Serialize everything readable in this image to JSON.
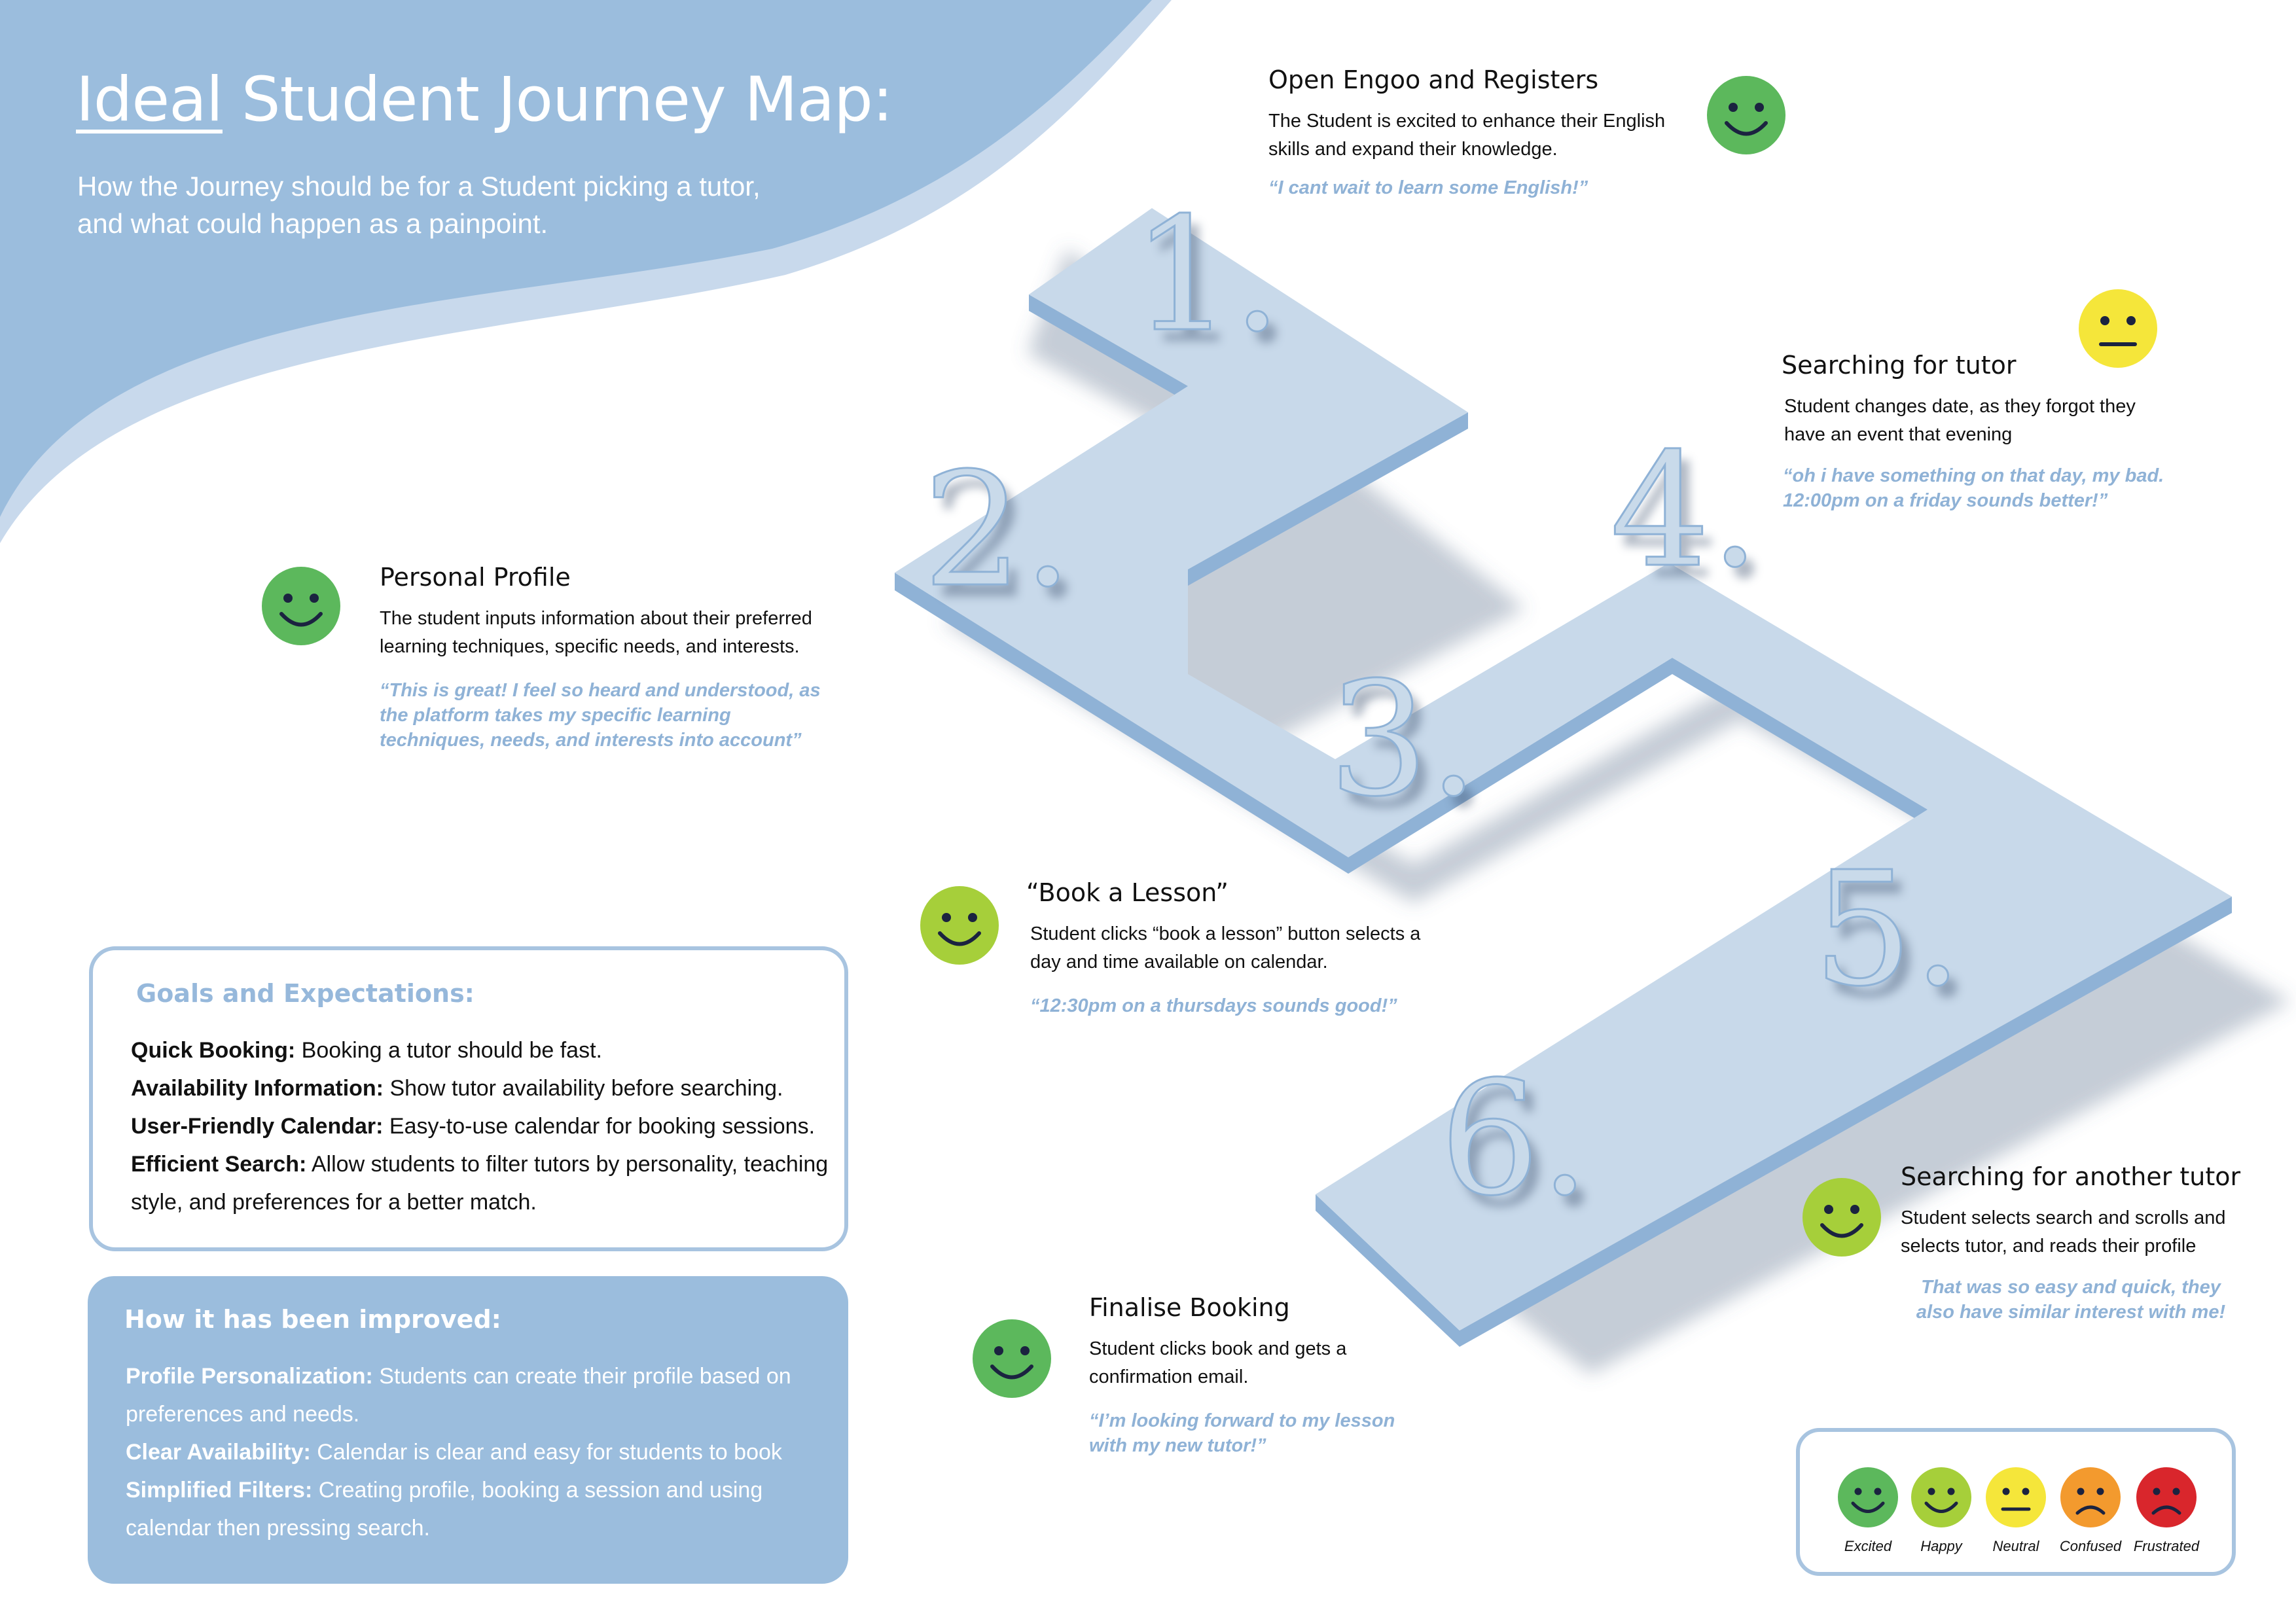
{
  "header": {
    "title_ideal": "Ideal",
    "title_rest": " Student Journey Map:",
    "subtitle_line1": "How the Journey should be for a Student picking a tutor,",
    "subtitle_line2": "and what could happen as a painpoint."
  },
  "steps": {
    "n1": "1.",
    "n2": "2.",
    "n3": "3.",
    "n4": "4.",
    "n5": "5.",
    "n6": "6."
  },
  "stages": [
    {
      "title": "Open Engoo and Registers",
      "desc": "The Student is excited to enhance their English skills and expand their knowledge.",
      "quote": "“I cant wait to learn some English!”",
      "emotion": "Excited"
    },
    {
      "title": "Personal Profile",
      "desc": "The student inputs information about their preferred learning techniques, specific needs, and interests.",
      "quote": "“This is great! I feel so heard and understood, as the platform takes my specific learning techniques, needs, and interests into account”",
      "emotion": "Excited"
    },
    {
      "title": "“Book a Lesson”",
      "desc": "Student clicks “book a lesson” button selects a day and time available on calendar.",
      "quote": "“12:30pm on a thursdays sounds good!”",
      "emotion": "Happy"
    },
    {
      "title": "Searching for tutor",
      "desc": "Student changes date, as they forgot they have an event that evening",
      "quote": "“oh i have something on that day, my bad. 12:00pm on a friday sounds better!”",
      "emotion": "Neutral"
    },
    {
      "title": "Searching for another tutor",
      "desc": "Student selects search and scrolls and selects tutor, and reads their profile",
      "quote": "That was so easy and quick, they also have similar interest with me!",
      "emotion": "Happy"
    },
    {
      "title": "Finalise Booking",
      "desc": "Student clicks book and gets a confirmation email.",
      "quote": "“I’m looking forward to my lesson with my new tutor!”",
      "emotion": "Excited"
    }
  ],
  "goals": {
    "title": "Goals and Expectations:",
    "items": [
      {
        "label": "Quick Booking:",
        "text": " Booking a tutor should be fast."
      },
      {
        "label": "Availability Information:",
        "text": " Show tutor availability before searching."
      },
      {
        "label": "User-Friendly Calendar:",
        "text": " Easy-to-use calendar for booking sessions."
      },
      {
        "label": "Efficient Search:",
        "text": " Allow students to filter tutors by personality, teaching style, and preferences for a better match."
      }
    ]
  },
  "improved": {
    "title": "How it has been improved:",
    "items": [
      {
        "label": "Profile Personalization:",
        "text": " Students can create their profile based on preferences and needs."
      },
      {
        "label": "Clear Availability:",
        "text": " Calendar is clear and easy for students to book"
      },
      {
        "label": "Simplified Filters:",
        "text": " Creating profile, booking a session and using calendar then pressing search."
      }
    ]
  },
  "legend": [
    {
      "label": "Excited",
      "color": "#5cb85c",
      "face": "smile"
    },
    {
      "label": "Happy",
      "color": "#a6cf3a",
      "face": "smile"
    },
    {
      "label": "Neutral",
      "color": "#f5e63a",
      "face": "neutral"
    },
    {
      "label": "Confused",
      "color": "#f39a2e",
      "face": "frown"
    },
    {
      "label": "Frustrated",
      "color": "#d9262c",
      "face": "frown"
    }
  ],
  "colors": {
    "wave": "#9bbddd",
    "wave_light": "#c8d9ec",
    "path_top": "#c8d9ea",
    "path_side": "#8fb2d6",
    "quote": "#8fb2d6"
  }
}
